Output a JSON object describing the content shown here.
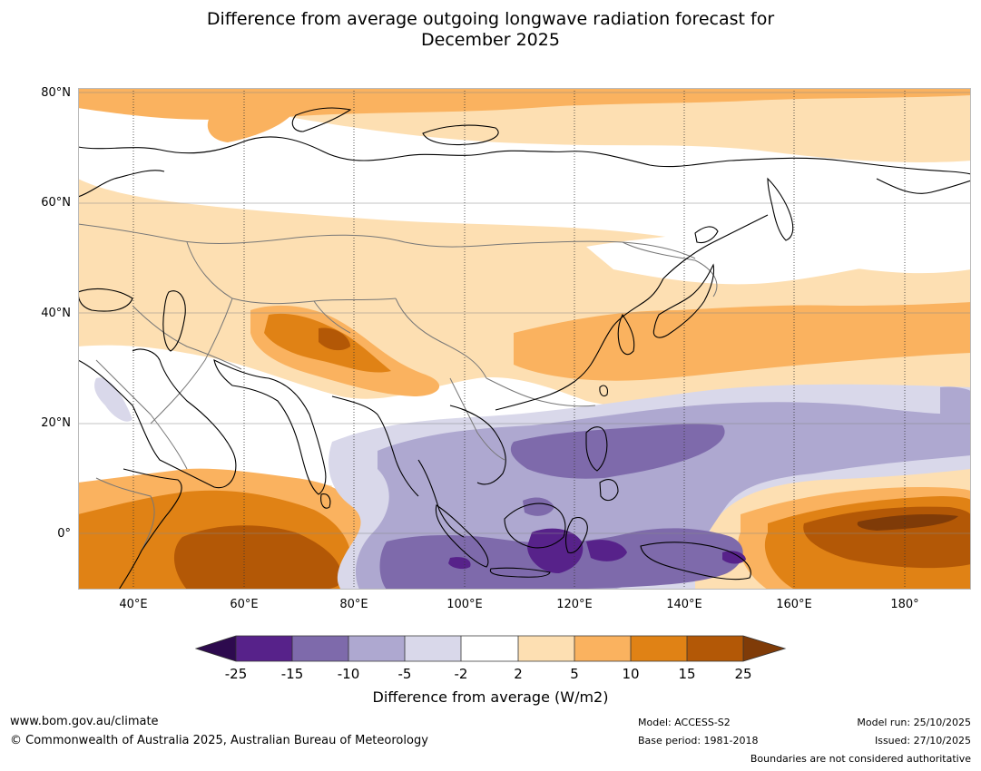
{
  "title": {
    "line1": "Difference from average outgoing longwave radiation forecast for",
    "line2": "December 2025"
  },
  "map": {
    "lat_labels": [
      "80°N",
      "60°N",
      "40°N",
      "20°N",
      "0°"
    ],
    "lon_labels": [
      "40°E",
      "60°E",
      "80°E",
      "100°E",
      "120°E",
      "140°E",
      "160°E",
      "180°"
    ]
  },
  "colorbar": {
    "ticks": [
      "-25",
      "-15",
      "-10",
      "-5",
      "-2",
      "2",
      "5",
      "10",
      "15",
      "25"
    ],
    "label": "Difference from average (W/m2)",
    "colors": {
      "extend_low": "#2d0a4e",
      "lt_m15": "#57228a",
      "m15_m10": "#7e6aab",
      "m10_m5": "#aea8d0",
      "m5_m2": "#d9d8ea",
      "m2_2": "#ffffff",
      "p2_5": "#fddfb2",
      "p5_10": "#fab25f",
      "p10_15": "#e08215",
      "p15_25": "#b35806",
      "extend_high": "#7f3b08"
    }
  },
  "footer": {
    "website": "www.bom.gov.au/climate",
    "copyright": "© Commonwealth of Australia 2025, Australian Bureau of Meteorology",
    "model": "Model: ACCESS-S2",
    "base_period": "Base period: 1981-2018",
    "model_run": "Model run: 25/10/2025",
    "issued": "Issued: 27/10/2025",
    "disclaimer": "Boundaries are not considered authoritative"
  }
}
